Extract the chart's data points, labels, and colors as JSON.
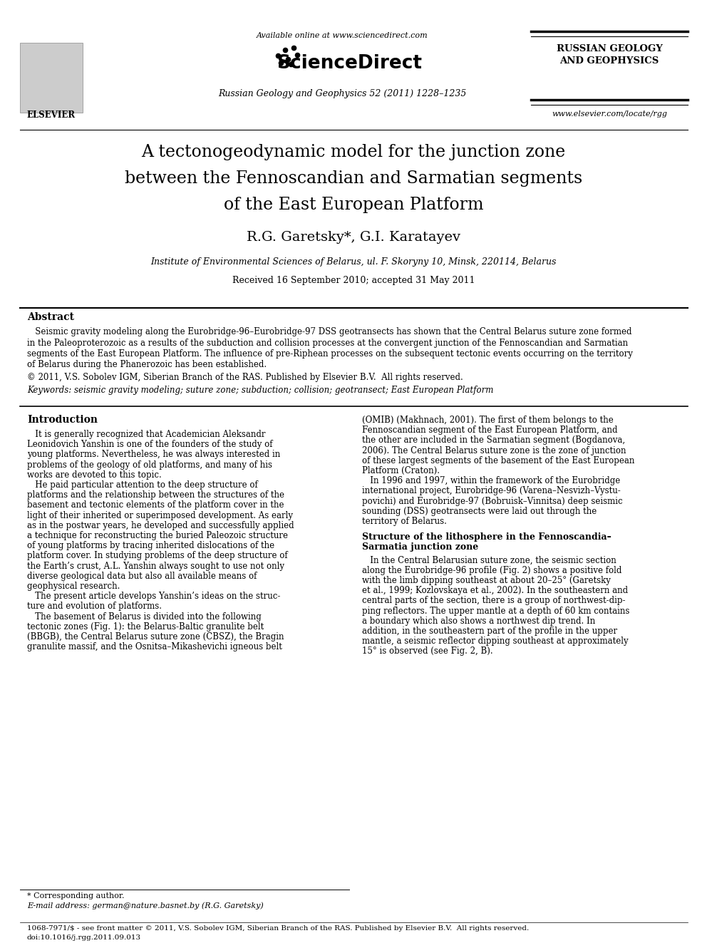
{
  "bg_color": "#ffffff",
  "title_line1": "A tectonogeodynamic model for the junction zone",
  "title_line2": "between the Fennoscandian and Sarmatian segments",
  "title_line3": "of the East European Platform",
  "authors": "R.G. Garetsky*, G.I. Karatayev",
  "affiliation": "Institute of Environmental Sciences of Belarus, ul. F. Skoryny 10, Minsk, 220114, Belarus",
  "received": "Received 16 September 2010; accepted 31 May 2011",
  "journal_header": "Russian Geology and Geophysics 52 (2011) 1228–1235",
  "available_online": "Available online at www.sciencedirect.com",
  "sciencedirect_text": "ScienceDirect",
  "russian_geology_line1": "RUSSIAN GEOLOGY",
  "russian_geology_line2": "AND GEOPHYSICS",
  "elsevier_text": "ELSEVIER",
  "website": "www.elsevier.com/locate/rgg",
  "abstract_title": "Abstract",
  "abstract_text_lines": [
    "   Seismic gravity modeling along the Eurobridge-96–Eurobridge-97 DSS geotransects has shown that the Central Belarus suture zone formed",
    "in the Paleoproterozoic as a results of the subduction and collision processes at the convergent junction of the Fennoscandian and Sarmatian",
    "segments of the East European Platform. The influence of pre-Riphean processes on the subsequent tectonic events occurring on the territory",
    "of Belarus during the Phanerozoic has been established."
  ],
  "copyright": "© 2011, V.S. Sobolev IGM, Siberian Branch of the RAS. Published by Elsevier B.V.  All rights reserved.",
  "keywords": "Keywords: seismic gravity modeling; suture zone; subduction; collision; geotransect; East European Platform",
  "intro_title": "Introduction",
  "intro_left_lines": [
    "   It is generally recognized that Academician Aleksandr",
    "Leonidovich Yanshin is one of the founders of the study of",
    "young platforms. Nevertheless, he was always interested in",
    "problems of the geology of old platforms, and many of his",
    "works are devoted to this topic.",
    "   He paid particular attention to the deep structure of",
    "platforms and the relationship between the structures of the",
    "basement and tectonic elements of the platform cover in the",
    "light of their inherited or superimposed development. As early",
    "as in the postwar years, he developed and successfully applied",
    "a technique for reconstructing the buried Paleozoic structure",
    "of young platforms by tracing inherited dislocations of the",
    "platform cover. In studying problems of the deep structure of",
    "the Earth’s crust, A.L. Yanshin always sought to use not only",
    "diverse geological data but also all available means of",
    "geophysical research.",
    "   The present article develops Yanshin’s ideas on the struc-",
    "ture and evolution of platforms.",
    "   The basement of Belarus is divided into the following",
    "tectonic zones (Fig. 1): the Belarus-Baltic granulite belt",
    "(BBGB), the Central Belarus suture zone (CBSZ), the Bragin",
    "granulite massif, and the Osnitsa–Mikashevichi igneous belt"
  ],
  "intro_right_lines": [
    "(OMIB) (Makhnach, 2001). The first of them belongs to the",
    "Fennoscandian segment of the East European Platform, and",
    "the other are included in the Sarmatian segment (Bogdanova,",
    "2006). The Central Belarus suture zone is the zone of junction",
    "of these largest segments of the basement of the East European",
    "Platform (Craton).",
    "   In 1996 and 1997, within the framework of the Eurobridge",
    "international project, Eurobridge-96 (Varena–Nesvizh–Vystu-",
    "povichi) and Eurobridge-97 (Bobruisk–Vinnitsa) deep seismic",
    "sounding (DSS) geotransects were laid out through the",
    "territory of Belarus."
  ],
  "structure_title_line1": "Structure of the lithosphere in the Fennoscandia–",
  "structure_title_line2": "Sarmatia junction zone",
  "structure_right_lines": [
    "   In the Central Belarusian suture zone, the seismic section",
    "along the Eurobridge-96 profile (Fig. 2) shows a positive fold",
    "with the limb dipping southeast at about 20–25° (Garetsky",
    "et al., 1999; Kozlovskaya et al., 2002). In the southeastern and",
    "central parts of the section, there is a group of northwest-dip-",
    "ping reflectors. The upper mantle at a depth of 60 km contains",
    "a boundary which also shows a northwest dip trend. In",
    "addition, in the southeastern part of the profile in the upper",
    "mantle, a seismic reflector dipping southeast at approximately",
    "15° is observed (see Fig. 2, B)."
  ],
  "footnote_star": "* Corresponding author.",
  "footnote_email": "E-mail address: german@nature.basnet.by (R.G. Garetsky)",
  "footer_issn": "1068-7971/$ - see front matter © 2011, V.S. Sobolev IGM, Siberian Branch of the RAS. Published by Elsevier B.V.  All rights reserved.",
  "footer_doi": "doi:10.1016/j.rgg.2011.09.013"
}
